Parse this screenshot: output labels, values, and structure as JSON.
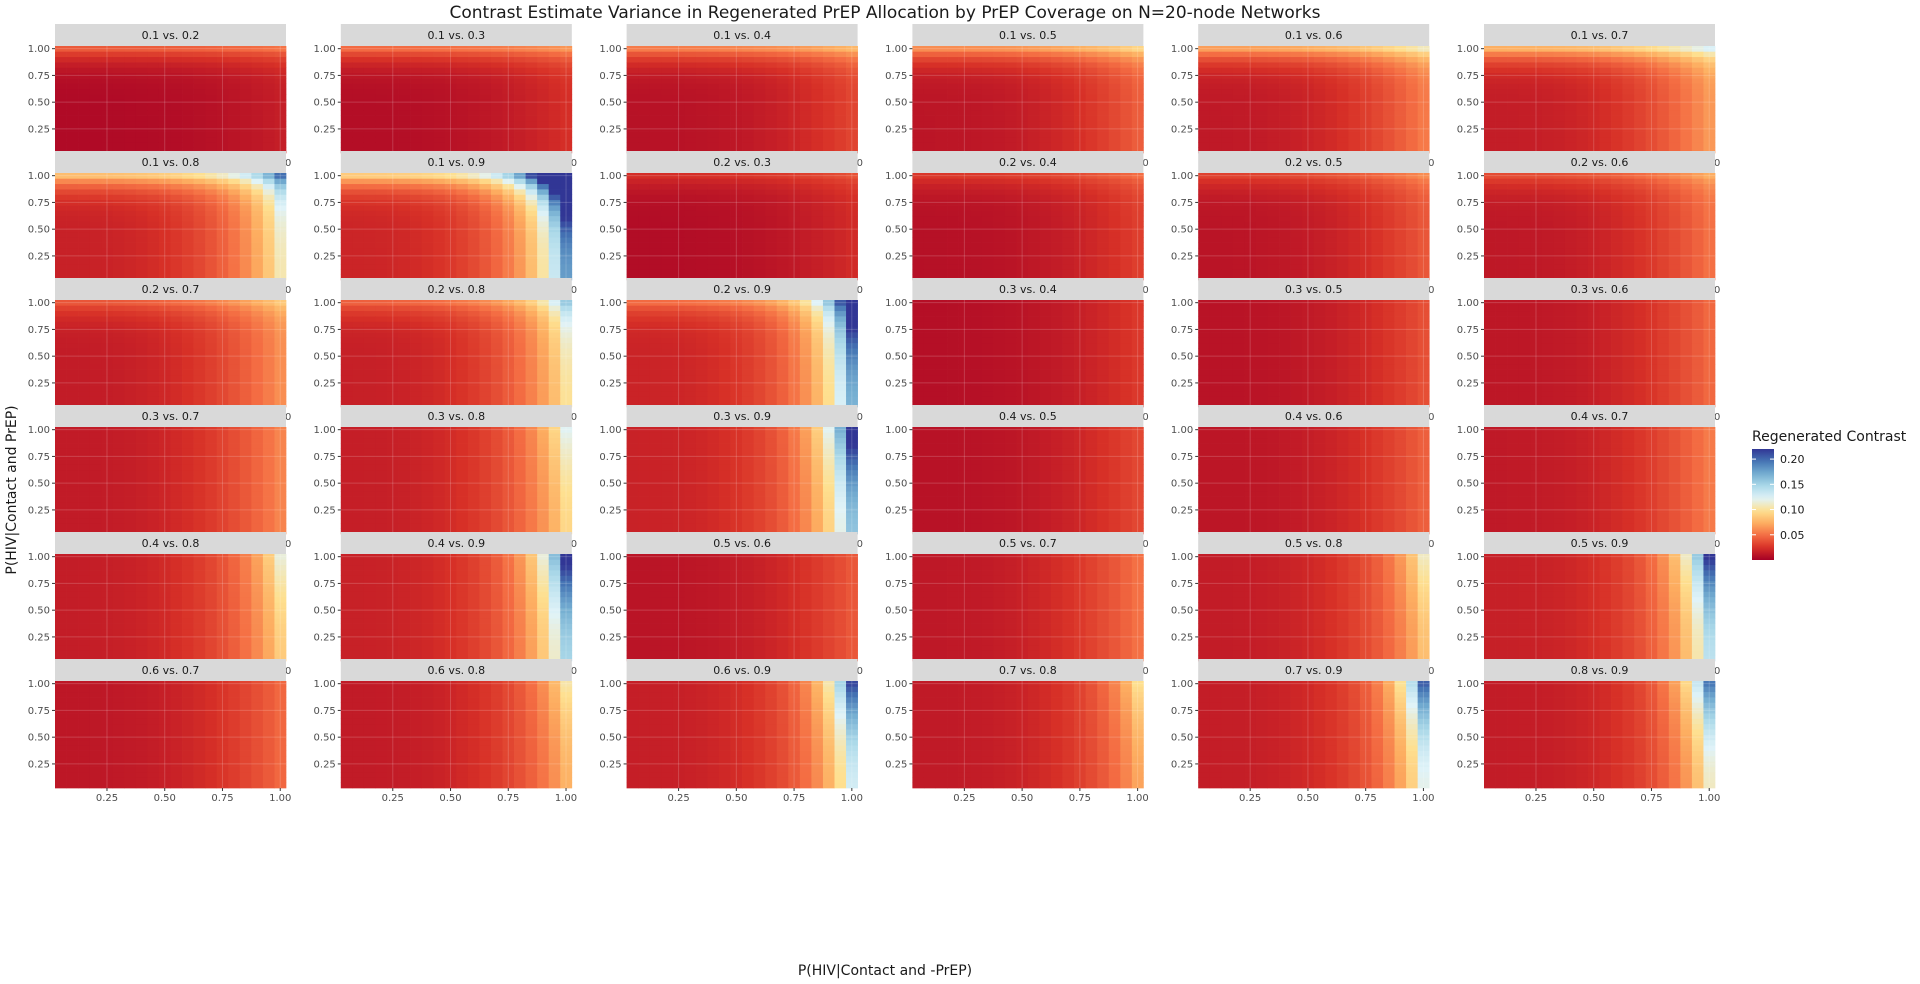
{
  "chart_data": {
    "type": "heatmap",
    "title": "Contrast Estimate Variance in Regenerated PrEP Allocation by PrEP Coverage on N=20-node Networks",
    "xlabel": "P(HIV|Contact and -PrEP)",
    "ylabel": "P(HIV|Contact and PrEP)",
    "x_ticks": [
      "0.25",
      "0.50",
      "0.75",
      "1.00"
    ],
    "y_ticks": [
      "0.25",
      "0.50",
      "0.75",
      "1.00"
    ],
    "x_grid": [
      0.05,
      0.1,
      0.15,
      0.2,
      0.25,
      0.3,
      0.35,
      0.4,
      0.45,
      0.5,
      0.55,
      0.6,
      0.65,
      0.7,
      0.75,
      0.8,
      0.85,
      0.9,
      0.95,
      1.0
    ],
    "y_grid": [
      0.05,
      0.1,
      0.15,
      0.2,
      0.25,
      0.3,
      0.35,
      0.4,
      0.45,
      0.5,
      0.55,
      0.6,
      0.65,
      0.7,
      0.75,
      0.8,
      0.85,
      0.9,
      0.95,
      1.0
    ],
    "xlim": [
      0.025,
      1.025
    ],
    "ylim": [
      0.025,
      1.025
    ],
    "legend": {
      "title": "Regenerated Contrast",
      "ticks": [
        "0.05",
        "0.10",
        "0.15",
        "0.20"
      ],
      "tick_values": [
        0.05,
        0.1,
        0.15,
        0.2
      ],
      "range": [
        0.0,
        0.22
      ],
      "placement": "right"
    },
    "color_scale": {
      "name": "RdYlBu",
      "stops": [
        "#a50026",
        "#d73027",
        "#f46d43",
        "#fdae61",
        "#fee090",
        "#e0f3f8",
        "#abd9e9",
        "#74add1",
        "#4575b4",
        "#313695"
      ]
    },
    "grid": true,
    "facet_layout": {
      "rows": 6,
      "cols": 6
    },
    "panels": [
      {
        "label": "0.1 vs. 0.2",
        "a": 0.1,
        "b": 0.2
      },
      {
        "label": "0.1 vs. 0.3",
        "a": 0.1,
        "b": 0.3
      },
      {
        "label": "0.1 vs. 0.4",
        "a": 0.1,
        "b": 0.4
      },
      {
        "label": "0.1 vs. 0.5",
        "a": 0.1,
        "b": 0.5
      },
      {
        "label": "0.1 vs. 0.6",
        "a": 0.1,
        "b": 0.6
      },
      {
        "label": "0.1 vs. 0.7",
        "a": 0.1,
        "b": 0.7
      },
      {
        "label": "0.1 vs. 0.8",
        "a": 0.1,
        "b": 0.8
      },
      {
        "label": "0.1 vs. 0.9",
        "a": 0.1,
        "b": 0.9
      },
      {
        "label": "0.2 vs. 0.3",
        "a": 0.2,
        "b": 0.3
      },
      {
        "label": "0.2 vs. 0.4",
        "a": 0.2,
        "b": 0.4
      },
      {
        "label": "0.2 vs. 0.5",
        "a": 0.2,
        "b": 0.5
      },
      {
        "label": "0.2 vs. 0.6",
        "a": 0.2,
        "b": 0.6
      },
      {
        "label": "0.2 vs. 0.7",
        "a": 0.2,
        "b": 0.7
      },
      {
        "label": "0.2 vs. 0.8",
        "a": 0.2,
        "b": 0.8
      },
      {
        "label": "0.2 vs. 0.9",
        "a": 0.2,
        "b": 0.9
      },
      {
        "label": "0.3 vs. 0.4",
        "a": 0.3,
        "b": 0.4
      },
      {
        "label": "0.3 vs. 0.5",
        "a": 0.3,
        "b": 0.5
      },
      {
        "label": "0.3 vs. 0.6",
        "a": 0.3,
        "b": 0.6
      },
      {
        "label": "0.3 vs. 0.7",
        "a": 0.3,
        "b": 0.7
      },
      {
        "label": "0.3 vs. 0.8",
        "a": 0.3,
        "b": 0.8
      },
      {
        "label": "0.3 vs. 0.9",
        "a": 0.3,
        "b": 0.9
      },
      {
        "label": "0.4 vs. 0.5",
        "a": 0.4,
        "b": 0.5
      },
      {
        "label": "0.4 vs. 0.6",
        "a": 0.4,
        "b": 0.6
      },
      {
        "label": "0.4 vs. 0.7",
        "a": 0.4,
        "b": 0.7
      },
      {
        "label": "0.4 vs. 0.8",
        "a": 0.4,
        "b": 0.8
      },
      {
        "label": "0.4 vs. 0.9",
        "a": 0.4,
        "b": 0.9
      },
      {
        "label": "0.5 vs. 0.6",
        "a": 0.5,
        "b": 0.6
      },
      {
        "label": "0.5 vs. 0.7",
        "a": 0.5,
        "b": 0.7
      },
      {
        "label": "0.5 vs. 0.8",
        "a": 0.5,
        "b": 0.8
      },
      {
        "label": "0.5 vs. 0.9",
        "a": 0.5,
        "b": 0.9
      },
      {
        "label": "0.6 vs. 0.7",
        "a": 0.6,
        "b": 0.7
      },
      {
        "label": "0.6 vs. 0.8",
        "a": 0.6,
        "b": 0.8
      },
      {
        "label": "0.6 vs. 0.9",
        "a": 0.6,
        "b": 0.9
      },
      {
        "label": "0.7 vs. 0.8",
        "a": 0.7,
        "b": 0.8
      },
      {
        "label": "0.7 vs. 0.9",
        "a": 0.7,
        "b": 0.9
      },
      {
        "label": "0.8 vs. 0.9",
        "a": 0.8,
        "b": 0.9
      }
    ]
  }
}
